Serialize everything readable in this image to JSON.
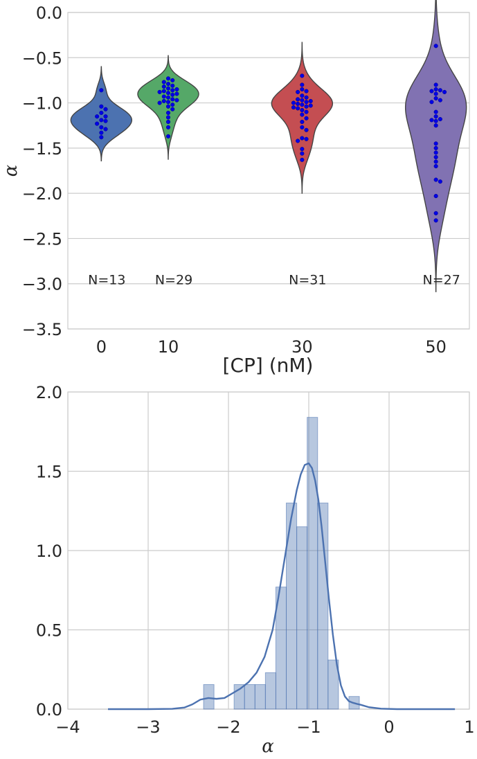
{
  "chart_data": [
    {
      "type": "violin",
      "xlabel": "[CP] (nM)",
      "ylabel": "α",
      "ylim": [
        -3.5,
        0.0
      ],
      "yticks": [
        "0.0",
        "−0.5",
        "−1.0",
        "−1.5",
        "−2.0",
        "−2.5",
        "−3.0",
        "−3.5"
      ],
      "ytick_values": [
        0.0,
        -0.5,
        -1.0,
        -1.5,
        -2.0,
        -2.5,
        -3.0,
        -3.5
      ],
      "categories": [
        "0",
        "10",
        "30",
        "50"
      ],
      "category_positions": [
        0,
        10,
        30,
        50
      ],
      "xlim": [
        -5,
        55
      ],
      "grid": true,
      "n_label_y": -3.0,
      "groups": [
        {
          "category": "0",
          "n_label": "N=13",
          "color": "#4c72b0",
          "points": [
            -0.86,
            -1.04,
            -1.07,
            -1.11,
            -1.15,
            -1.15,
            -1.19,
            -1.2,
            -1.23,
            -1.27,
            -1.29,
            -1.33,
            -1.38
          ]
        },
        {
          "category": "10",
          "n_label": "N=29",
          "color": "#55a868",
          "points": [
            -0.73,
            -0.75,
            -0.77,
            -0.79,
            -0.81,
            -0.82,
            -0.84,
            -0.85,
            -0.86,
            -0.87,
            -0.88,
            -0.89,
            -0.9,
            -0.91,
            -0.93,
            -0.94,
            -0.96,
            -0.97,
            -0.98,
            -0.99,
            -1.0,
            -1.02,
            -1.04,
            -1.07,
            -1.11,
            -1.16,
            -1.21,
            -1.27,
            -1.37
          ]
        },
        {
          "category": "30",
          "n_label": "N=31",
          "color": "#c44e52",
          "points": [
            -0.7,
            -0.8,
            -0.85,
            -0.87,
            -0.88,
            -0.92,
            -0.94,
            -0.96,
            -0.97,
            -0.98,
            -0.99,
            -1.0,
            -1.01,
            -1.02,
            -1.03,
            -1.04,
            -1.05,
            -1.06,
            -1.08,
            -1.1,
            -1.13,
            -1.17,
            -1.21,
            -1.27,
            -1.3,
            -1.39,
            -1.4,
            -1.42,
            -1.51,
            -1.56,
            -1.63
          ]
        },
        {
          "category": "50",
          "n_label": "N=27",
          "color": "#8172b2",
          "points": [
            -0.37,
            -0.8,
            -0.85,
            -0.86,
            -0.87,
            -0.88,
            -0.9,
            -0.95,
            -0.97,
            -0.99,
            -1.15,
            -1.18,
            -1.19,
            -1.25,
            -1.45,
            -1.5,
            -1.55,
            -1.65,
            -1.7,
            -1.85,
            -1.87,
            -2.03,
            -2.22,
            -2.3,
            -1.2,
            -1.1,
            -1.6
          ]
        }
      ]
    },
    {
      "type": "histogram",
      "xlabel": "α",
      "ylabel": "",
      "xlim": [
        -4,
        1
      ],
      "ylim": [
        0,
        2.0
      ],
      "xticks": [
        "−4",
        "−3",
        "−2",
        "−1",
        "0",
        "1"
      ],
      "xtick_values": [
        -4,
        -3,
        -2,
        -1,
        0,
        1
      ],
      "yticks": [
        "0.0",
        "0.5",
        "1.0",
        "1.5",
        "2.0"
      ],
      "ytick_values": [
        0.0,
        0.5,
        1.0,
        1.5,
        2.0
      ],
      "grid": true,
      "bar_color": "#4c72b0",
      "bar_alpha": 0.4,
      "line_color": "#4c72b0",
      "bins": [
        {
          "x0": -2.31,
          "x1": -2.18,
          "density": 0.155
        },
        {
          "x0": -2.06,
          "x1": -1.93,
          "density": 0.0
        },
        {
          "x0": -1.93,
          "x1": -1.8,
          "density": 0.155
        },
        {
          "x0": -1.8,
          "x1": -1.67,
          "density": 0.155
        },
        {
          "x0": -1.67,
          "x1": -1.54,
          "density": 0.155
        },
        {
          "x0": -1.54,
          "x1": -1.41,
          "density": 0.23
        },
        {
          "x0": -1.41,
          "x1": -1.28,
          "density": 0.77
        },
        {
          "x0": -1.28,
          "x1": -1.15,
          "density": 1.3
        },
        {
          "x0": -1.15,
          "x1": -1.02,
          "density": 1.15
        },
        {
          "x0": -1.02,
          "x1": -0.89,
          "density": 1.84
        },
        {
          "x0": -0.89,
          "x1": -0.76,
          "density": 1.3
        },
        {
          "x0": -0.76,
          "x1": -0.63,
          "density": 0.31
        },
        {
          "x0": -0.5,
          "x1": -0.37,
          "density": 0.08
        }
      ],
      "kde": {
        "x": [
          -3.5,
          -3.0,
          -2.7,
          -2.55,
          -2.45,
          -2.35,
          -2.25,
          -2.15,
          -2.05,
          -1.95,
          -1.85,
          -1.75,
          -1.65,
          -1.55,
          -1.45,
          -1.38,
          -1.3,
          -1.22,
          -1.15,
          -1.1,
          -1.05,
          -1.0,
          -0.96,
          -0.92,
          -0.88,
          -0.84,
          -0.8,
          -0.75,
          -0.7,
          -0.65,
          -0.6,
          -0.55,
          -0.5,
          -0.45,
          -0.4,
          -0.35,
          -0.25,
          -0.1,
          0.1,
          0.4,
          0.82
        ],
        "y": [
          0.0,
          0.0,
          0.002,
          0.01,
          0.03,
          0.06,
          0.07,
          0.065,
          0.07,
          0.1,
          0.13,
          0.17,
          0.23,
          0.33,
          0.5,
          0.7,
          0.95,
          1.2,
          1.38,
          1.48,
          1.54,
          1.55,
          1.52,
          1.44,
          1.32,
          1.15,
          0.95,
          0.7,
          0.47,
          0.28,
          0.15,
          0.08,
          0.05,
          0.04,
          0.033,
          0.027,
          0.012,
          0.003,
          0.0,
          0.0,
          0.0
        ]
      }
    }
  ]
}
